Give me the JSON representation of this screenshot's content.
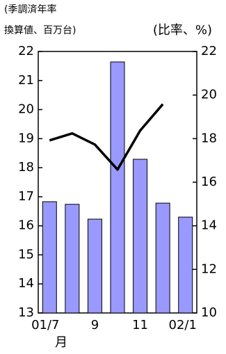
{
  "chart_data": {
    "type": "combo",
    "y_label": [
      "(季調済年率",
      "換算値、百万台)"
    ],
    "y2_label": "(比率、%)",
    "x_unit": "月",
    "categories": [
      "01/7",
      null,
      "9",
      null,
      "11",
      null,
      "02/1"
    ],
    "series": [
      {
        "type": "bar",
        "color": "#9999ff",
        "axis": "y",
        "values": [
          16.83,
          16.74,
          16.23,
          21.64,
          18.29,
          16.78,
          16.3
        ]
      },
      {
        "type": "line",
        "color": "#000000",
        "axis": "y2",
        "values": [
          17.92,
          18.24,
          17.73,
          16.58,
          18.37,
          19.58,
          null
        ]
      }
    ],
    "ylim": [
      13,
      22
    ],
    "yticks": [
      13,
      14,
      15,
      16,
      17,
      18,
      19,
      20,
      21,
      22
    ],
    "y2lim": [
      10,
      22
    ],
    "y2ticks": [
      10,
      12,
      14,
      16,
      18,
      20,
      22
    ]
  }
}
